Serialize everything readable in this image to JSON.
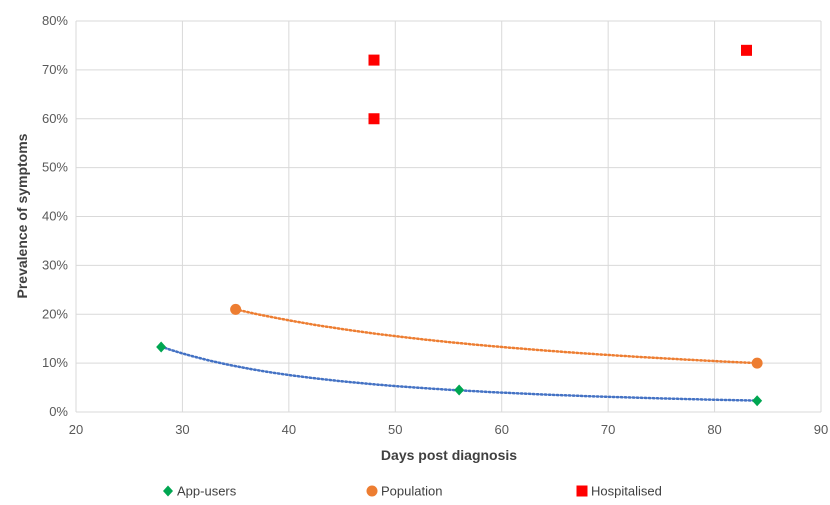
{
  "chart_data": {
    "type": "scatter",
    "title": "",
    "xlabel": "Days post diagnosis",
    "ylabel": "Prevalence of symptoms",
    "xlim": [
      20,
      90
    ],
    "ylim": [
      0,
      80
    ],
    "x_ticks": [
      20,
      30,
      40,
      50,
      60,
      70,
      80,
      90
    ],
    "y_ticks": [
      0,
      10,
      20,
      30,
      40,
      50,
      60,
      70,
      80
    ],
    "y_tick_labels": [
      "0%",
      "10%",
      "20%",
      "30%",
      "40%",
      "50%",
      "60%",
      "70%",
      "80%"
    ],
    "grid": true,
    "legend_position": "bottom",
    "series": [
      {
        "name": "App-users",
        "marker": "diamond",
        "color": "#00a651",
        "trendline": true,
        "trendline_color": "#4472c4",
        "points": [
          {
            "x": 28,
            "y": 13.3
          },
          {
            "x": 56,
            "y": 4.5
          },
          {
            "x": 84,
            "y": 2.3
          }
        ]
      },
      {
        "name": "Population",
        "marker": "circle",
        "color": "#ed7d31",
        "trendline": true,
        "trendline_color": "#ed7d31",
        "points": [
          {
            "x": 35,
            "y": 21
          },
          {
            "x": 84,
            "y": 10
          }
        ]
      },
      {
        "name": "Hospitalised",
        "marker": "square",
        "color": "#ff0000",
        "trendline": false,
        "points": [
          {
            "x": 48,
            "y": 72
          },
          {
            "x": 48,
            "y": 60
          },
          {
            "x": 83,
            "y": 74
          }
        ]
      }
    ]
  }
}
